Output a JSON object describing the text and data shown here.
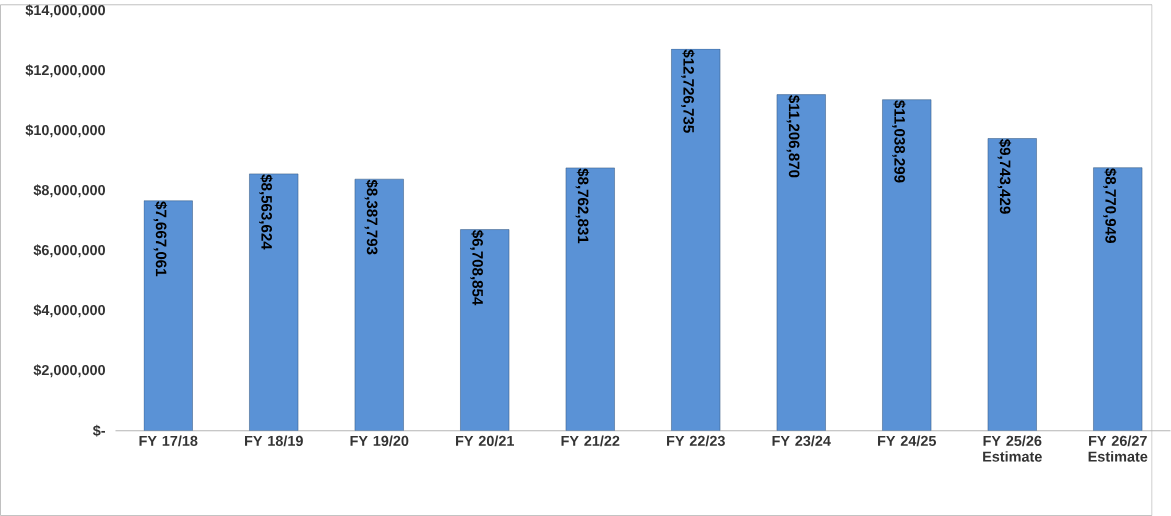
{
  "chart_data": {
    "type": "bar",
    "categories": [
      "FY 17/18",
      "FY 18/19",
      "FY 19/20",
      "FY 20/21",
      "FY 21/22",
      "FY 22/23",
      "FY 23/24",
      "FY 24/25",
      "FY 25/26 Estimate",
      "FY 26/27 Estimate"
    ],
    "values": [
      7667061,
      8563624,
      8387793,
      6708854,
      8762831,
      12726735,
      11206870,
      11038299,
      9743429,
      8770949
    ],
    "value_labels": [
      "$7,667,061",
      "$8,563,624",
      "$8,387,793",
      "$6,708,854",
      "$8,762,831",
      "$12,726,735",
      "$11,206,870",
      "$11,038,299",
      "$9,743,429",
      "$8,770,949"
    ],
    "color": "#5a92d6",
    "ylim": [
      0,
      14000000
    ],
    "yticks": [
      {
        "value": 0,
        "label": "$-"
      },
      {
        "value": 2000000,
        "label": "$2,000,000"
      },
      {
        "value": 4000000,
        "label": "$4,000,000"
      },
      {
        "value": 6000000,
        "label": "$6,000,000"
      },
      {
        "value": 8000000,
        "label": "$8,000,000"
      },
      {
        "value": 10000000,
        "label": "$10,000,000"
      },
      {
        "value": 12000000,
        "label": "$12,000,000"
      },
      {
        "value": 14000000,
        "label": "$14,000,000"
      }
    ],
    "grid": false
  }
}
